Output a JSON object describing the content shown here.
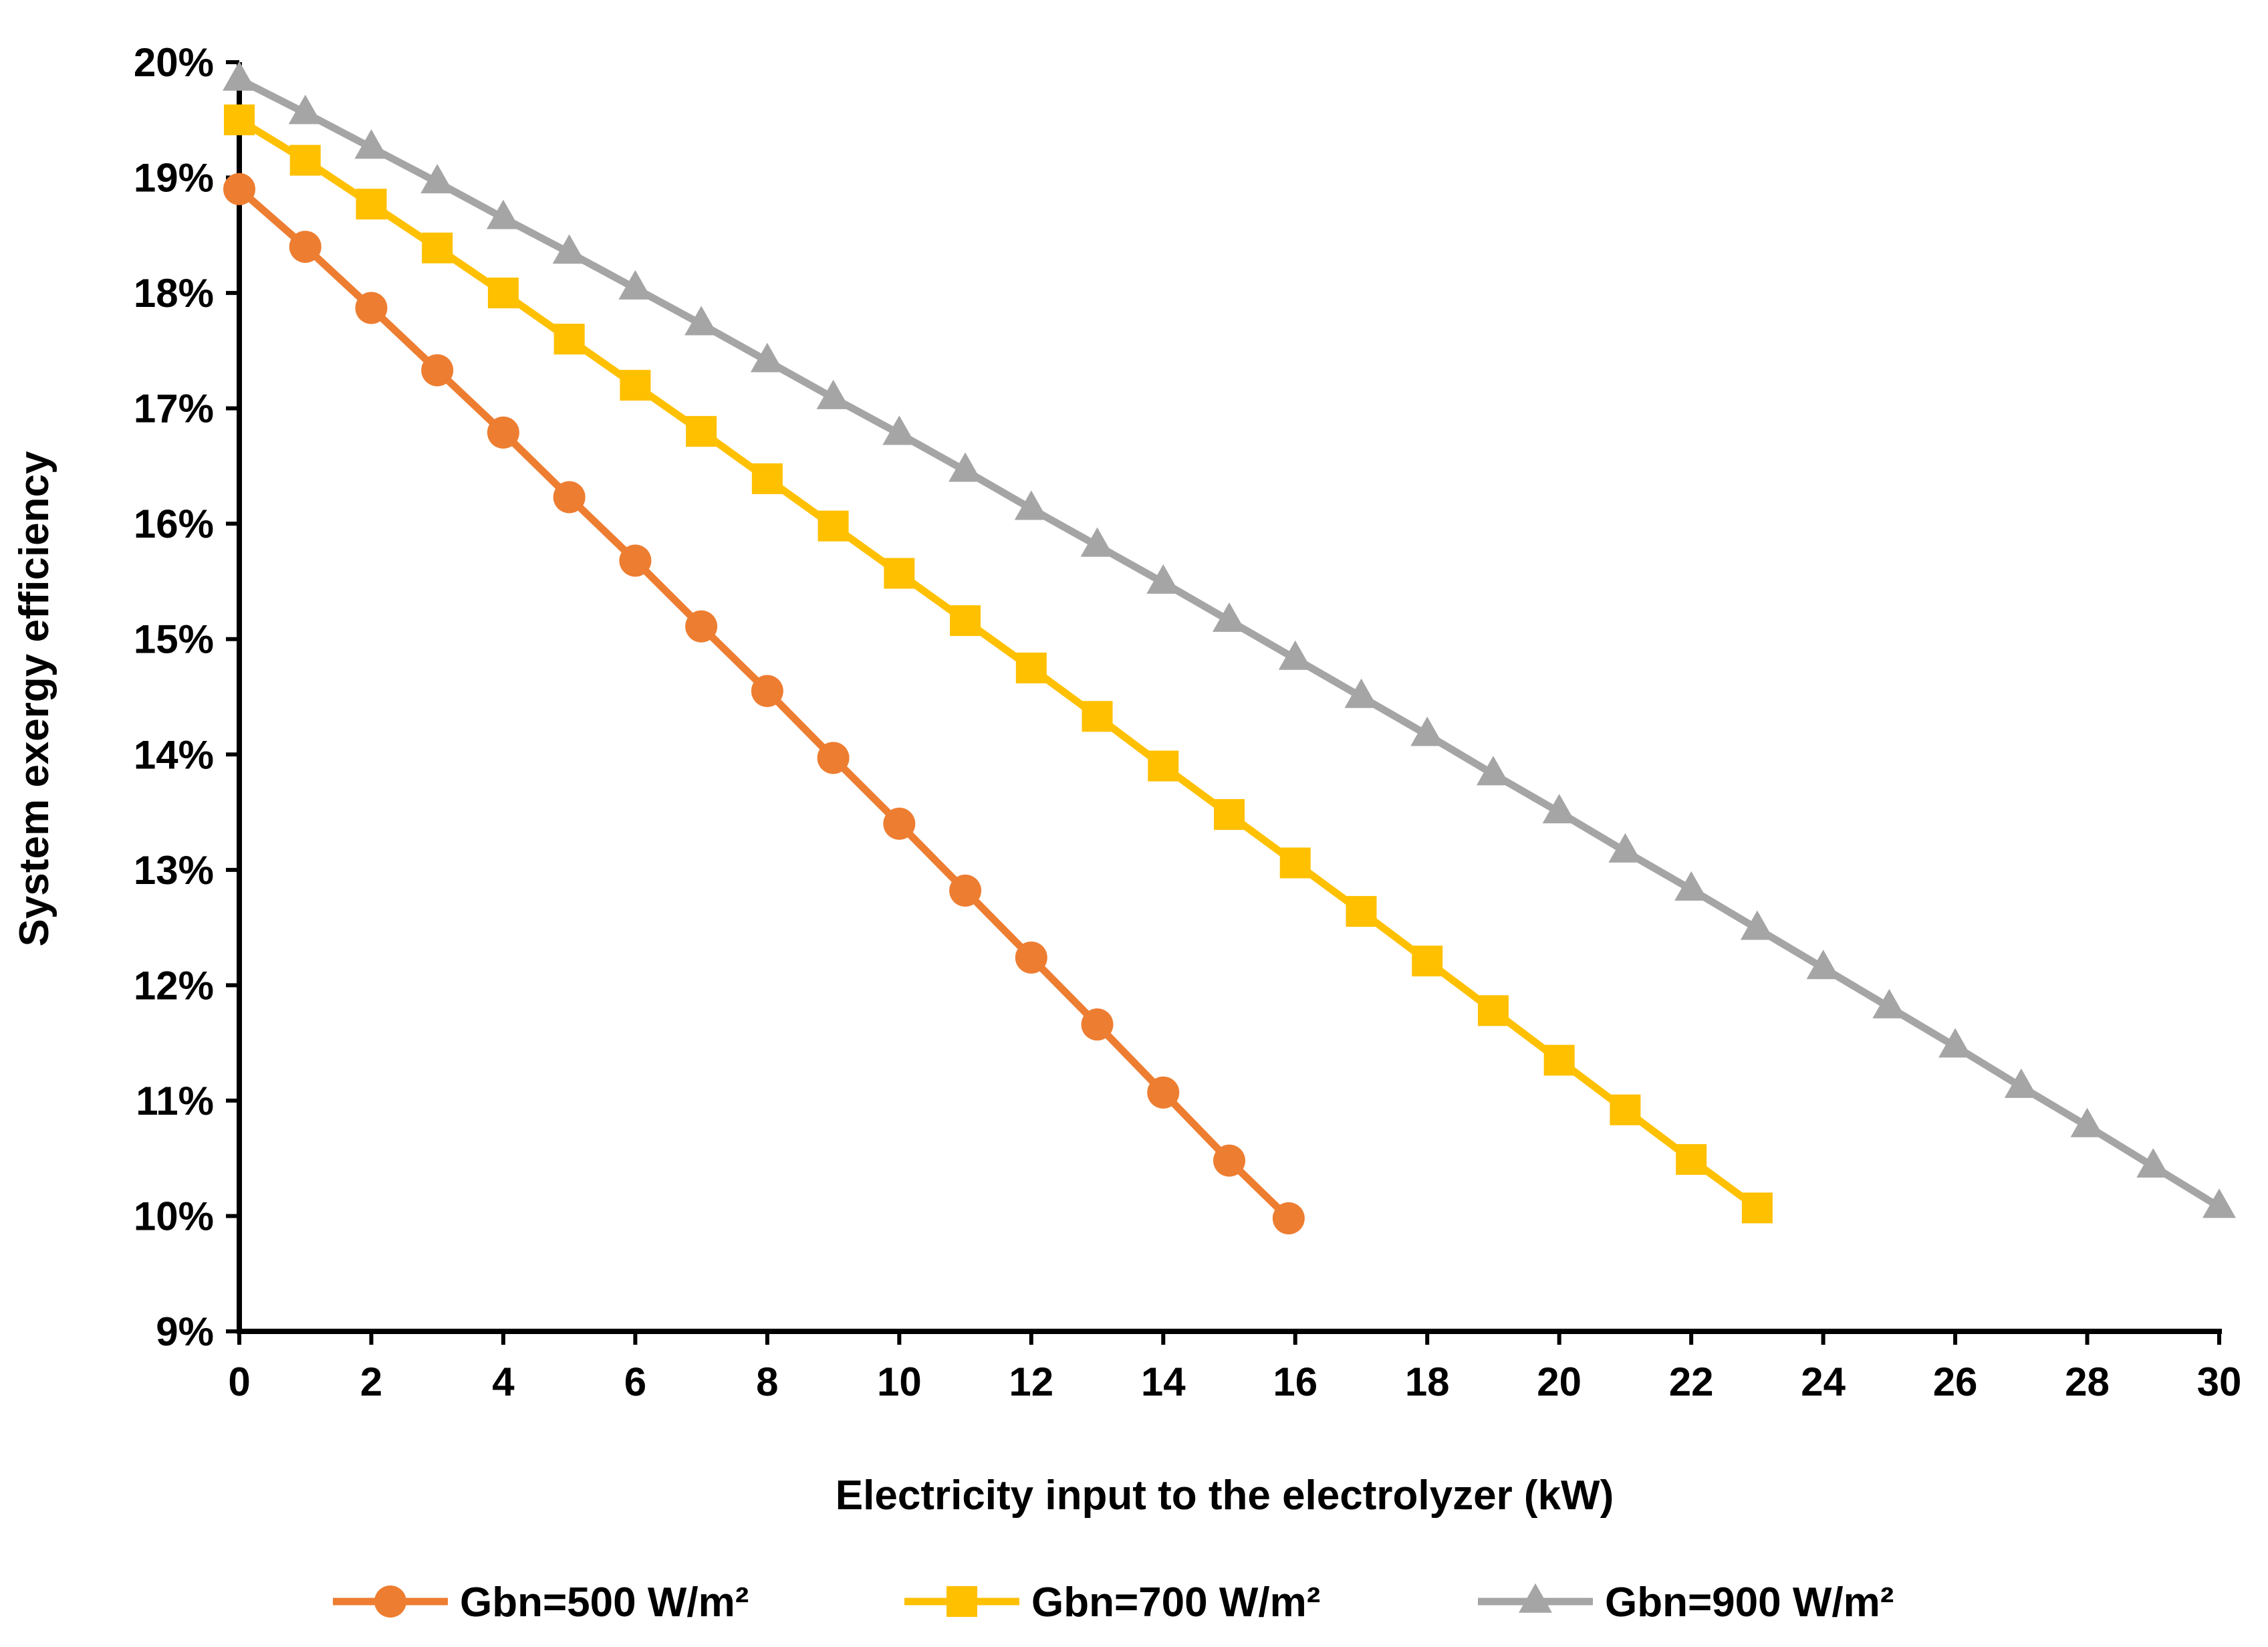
{
  "chart_data": {
    "type": "line",
    "title": "",
    "xlabel": "Electricity input to the electrolyzer (kW)",
    "ylabel": "System exergy efficiency",
    "xlim": [
      0,
      30
    ],
    "ylim": [
      9,
      20
    ],
    "x_ticks": [
      "0",
      "2",
      "4",
      "6",
      "8",
      "10",
      "12",
      "14",
      "16",
      "18",
      "20",
      "22",
      "24",
      "26",
      "28",
      "30"
    ],
    "y_ticks": [
      "9%",
      "10%",
      "11%",
      "12%",
      "13%",
      "14%",
      "15%",
      "16%",
      "17%",
      "18%",
      "19%",
      "20%"
    ],
    "grid": false,
    "legend_position": "bottom",
    "series": [
      {
        "name": "Gbn=500 W/m²",
        "color": "#ED7D31",
        "marker": "circle",
        "x": [
          0,
          1,
          2,
          3,
          4,
          5,
          6,
          7,
          8,
          9,
          10,
          11,
          12,
          13,
          14,
          15,
          15.9
        ],
        "y": [
          18.9,
          18.4,
          17.87,
          17.33,
          16.79,
          16.23,
          15.68,
          15.11,
          14.55,
          13.97,
          13.4,
          12.82,
          12.24,
          11.66,
          11.07,
          10.48,
          9.98
        ]
      },
      {
        "name": "Gbn=700 W/m²",
        "color": "#FFC000",
        "marker": "square",
        "x": [
          0,
          1,
          2,
          3,
          4,
          5,
          6,
          7,
          8,
          9,
          10,
          11,
          12,
          13,
          14,
          15,
          16,
          17,
          18,
          19,
          20,
          21,
          22,
          23
        ],
        "y": [
          19.5,
          19.15,
          18.77,
          18.39,
          18.0,
          17.6,
          17.2,
          16.8,
          16.39,
          15.98,
          15.57,
          15.16,
          14.75,
          14.33,
          13.9,
          13.48,
          13.06,
          12.64,
          12.21,
          11.78,
          11.35,
          10.92,
          10.49,
          10.07
        ]
      },
      {
        "name": "Gbn=900 W/m²",
        "color": "#A5A5A5",
        "marker": "triangle",
        "x": [
          0,
          1,
          2,
          3,
          4,
          5,
          6,
          7,
          8,
          9,
          10,
          11,
          12,
          13,
          14,
          15,
          16,
          17,
          18,
          19,
          20,
          21,
          22,
          23,
          24,
          25,
          26,
          27,
          28,
          29,
          30
        ],
        "y": [
          19.85,
          19.56,
          19.26,
          18.96,
          18.65,
          18.35,
          18.04,
          17.73,
          17.41,
          17.09,
          16.78,
          16.46,
          16.13,
          15.81,
          15.49,
          15.16,
          14.83,
          14.5,
          14.17,
          13.83,
          13.5,
          13.16,
          12.83,
          12.49,
          12.15,
          11.81,
          11.47,
          11.12,
          10.78,
          10.43,
          10.08
        ]
      }
    ]
  }
}
